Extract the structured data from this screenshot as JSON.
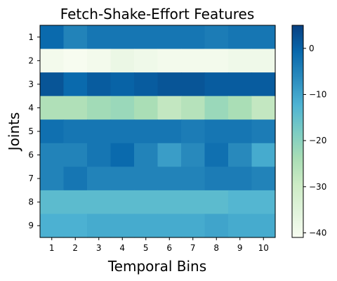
{
  "chart_data": {
    "type": "heatmap",
    "title": "Fetch-Shake-Effort Features",
    "xlabel": "Temporal Bins",
    "ylabel": "Joints",
    "x_categories": [
      "1",
      "2",
      "3",
      "4",
      "5",
      "6",
      "7",
      "8",
      "9",
      "10"
    ],
    "y_categories": [
      "1",
      "2",
      "3",
      "4",
      "5",
      "6",
      "7",
      "8",
      "9"
    ],
    "colormap": "GnBu",
    "vmin": -41,
    "vmax": 5,
    "colorbar_ticks": [
      "0",
      "−10",
      "−20",
      "−30",
      "−40"
    ],
    "colorbar_tick_values": [
      0,
      -10,
      -20,
      -30,
      -40
    ],
    "values": [
      [
        -1,
        -5,
        -3,
        -3,
        -3,
        -3,
        -3,
        -4,
        -3,
        -3
      ],
      [
        -40,
        -41,
        -40,
        -38,
        -39,
        -40,
        -40,
        -40,
        -39,
        -39
      ],
      [
        2,
        -1,
        1,
        0,
        1,
        2,
        2,
        1,
        1,
        1
      ],
      [
        -25,
        -25,
        -23,
        -22,
        -24,
        -28,
        -26,
        -22,
        -24,
        -28
      ],
      [
        -2,
        -3,
        -3,
        -3,
        -3,
        -3,
        -4,
        -3,
        -3,
        -4
      ],
      [
        -5,
        -5,
        -3,
        -1,
        -5,
        -9,
        -6,
        -2,
        -6,
        -11
      ],
      [
        -5,
        -3,
        -5,
        -5,
        -5,
        -5,
        -5,
        -4,
        -4,
        -5
      ],
      [
        -14,
        -14,
        -14,
        -14,
        -14,
        -14,
        -14,
        -14,
        -13,
        -13
      ],
      [
        -12,
        -12,
        -11,
        -11,
        -11,
        -11,
        -11,
        -10,
        -11,
        -11
      ]
    ]
  }
}
